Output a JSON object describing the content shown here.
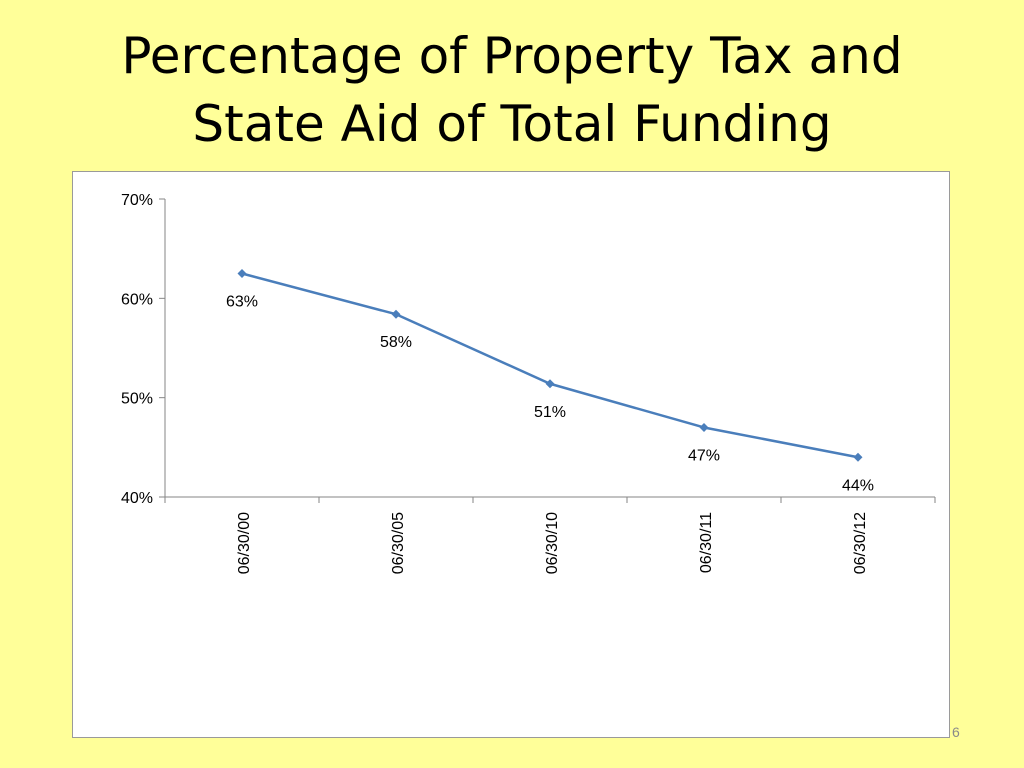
{
  "slide": {
    "title_lines": [
      "Percentage of Property Tax and",
      "State Aid of Total Funding"
    ],
    "page_number": "6",
    "background_color": "#FFFF99"
  },
  "chart_data": {
    "type": "line",
    "title": "",
    "xlabel": "",
    "ylabel": "",
    "categories": [
      "06/30/00",
      "06/30/05",
      "06/30/10",
      "06/30/11",
      "06/30/12"
    ],
    "series": [
      {
        "values": [
          62.5,
          58.4,
          51.4,
          47.0,
          44.0
        ],
        "data_labels": [
          "63%",
          "58%",
          "51%",
          "47%",
          "44%"
        ],
        "color": "#4A7EBB",
        "marker": "diamond"
      }
    ],
    "ylim": [
      40,
      70
    ],
    "y_ticks": [
      40,
      50,
      60,
      70
    ],
    "y_tick_labels": [
      "40%",
      "50%",
      "60%",
      "70%"
    ],
    "x_tick_rotation": "vertical",
    "grid": false,
    "legend": "none"
  }
}
